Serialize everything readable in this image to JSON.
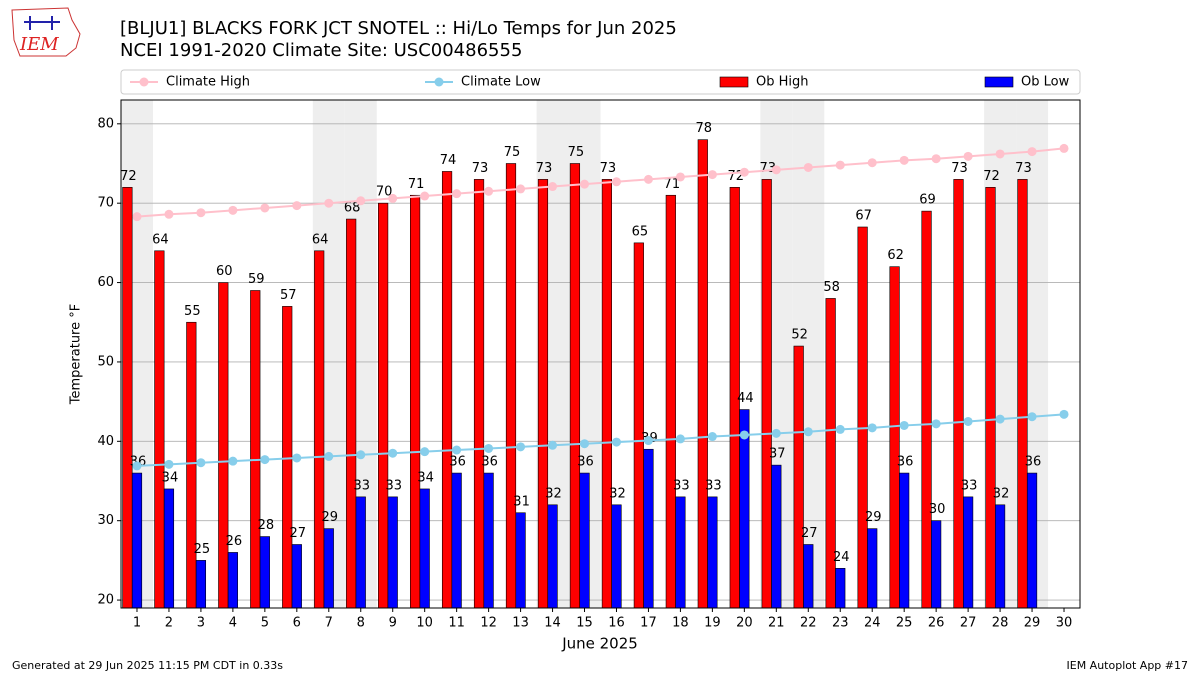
{
  "logo": "IEM",
  "footer_left": "Generated at 29 Jun 2025 11:15 PM CDT in 0.33s",
  "footer_right": "IEM Autoplot App #17",
  "chart_data": {
    "type": "bar",
    "title": "[BLJU1] BLACKS FORK JCT SNOTEL :: Hi/Lo Temps for Jun 2025",
    "subtitle": "NCEI 1991-2020 Climate Site: USC00486555",
    "x_label": "June 2025",
    "y_label": "Temperature °F",
    "x": [
      1,
      2,
      3,
      4,
      5,
      6,
      7,
      8,
      9,
      10,
      11,
      12,
      13,
      14,
      15,
      16,
      17,
      18,
      19,
      20,
      21,
      22,
      23,
      24,
      25,
      26,
      27,
      28,
      29,
      30
    ],
    "xlim": [
      0.5,
      30.5
    ],
    "xticks": [
      1,
      2,
      3,
      4,
      5,
      6,
      7,
      8,
      9,
      10,
      11,
      12,
      13,
      14,
      15,
      16,
      17,
      18,
      19,
      20,
      21,
      22,
      23,
      24,
      25,
      26,
      27,
      28,
      29,
      30
    ],
    "ylim": [
      19,
      83
    ],
    "yticks": [
      20,
      30,
      40,
      50,
      60,
      70,
      80
    ],
    "grid": true,
    "shaded_days": [
      1,
      7,
      8,
      14,
      15,
      21,
      22,
      28,
      29
    ],
    "shade_color": "#eeeeee",
    "legend": "top",
    "series": [
      {
        "name": "Climate High",
        "type": "line",
        "color": "pink",
        "values": [
          68.3,
          68.6,
          68.8,
          69.1,
          69.4,
          69.7,
          70.0,
          70.3,
          70.6,
          70.9,
          71.2,
          71.5,
          71.8,
          72.1,
          72.4,
          72.7,
          73.0,
          73.3,
          73.6,
          73.9,
          74.2,
          74.5,
          74.8,
          75.1,
          75.4,
          75.6,
          75.9,
          76.2,
          76.5,
          76.9
        ]
      },
      {
        "name": "Climate Low",
        "type": "line",
        "color": "skyblue",
        "values": [
          36.9,
          37.1,
          37.3,
          37.5,
          37.7,
          37.9,
          38.1,
          38.3,
          38.5,
          38.7,
          38.9,
          39.1,
          39.3,
          39.5,
          39.7,
          39.9,
          40.1,
          40.3,
          40.6,
          40.8,
          41.0,
          41.2,
          41.5,
          41.7,
          42.0,
          42.2,
          42.5,
          42.8,
          43.1,
          43.4
        ]
      },
      {
        "name": "Ob High",
        "type": "bar",
        "color": "red",
        "values": [
          72,
          64,
          55,
          60,
          59,
          57,
          64,
          68,
          70,
          71,
          74,
          73,
          75,
          73,
          75,
          73,
          65,
          71,
          78,
          72,
          73,
          52,
          58,
          67,
          62,
          69,
          73,
          72,
          73,
          null
        ]
      },
      {
        "name": "Ob Low",
        "type": "bar",
        "color": "blue",
        "values": [
          36,
          34,
          25,
          26,
          28,
          27,
          29,
          33,
          33,
          34,
          36,
          36,
          31,
          32,
          36,
          32,
          39,
          33,
          33,
          44,
          37,
          27,
          24,
          29,
          36,
          30,
          33,
          32,
          36,
          null
        ]
      }
    ]
  }
}
